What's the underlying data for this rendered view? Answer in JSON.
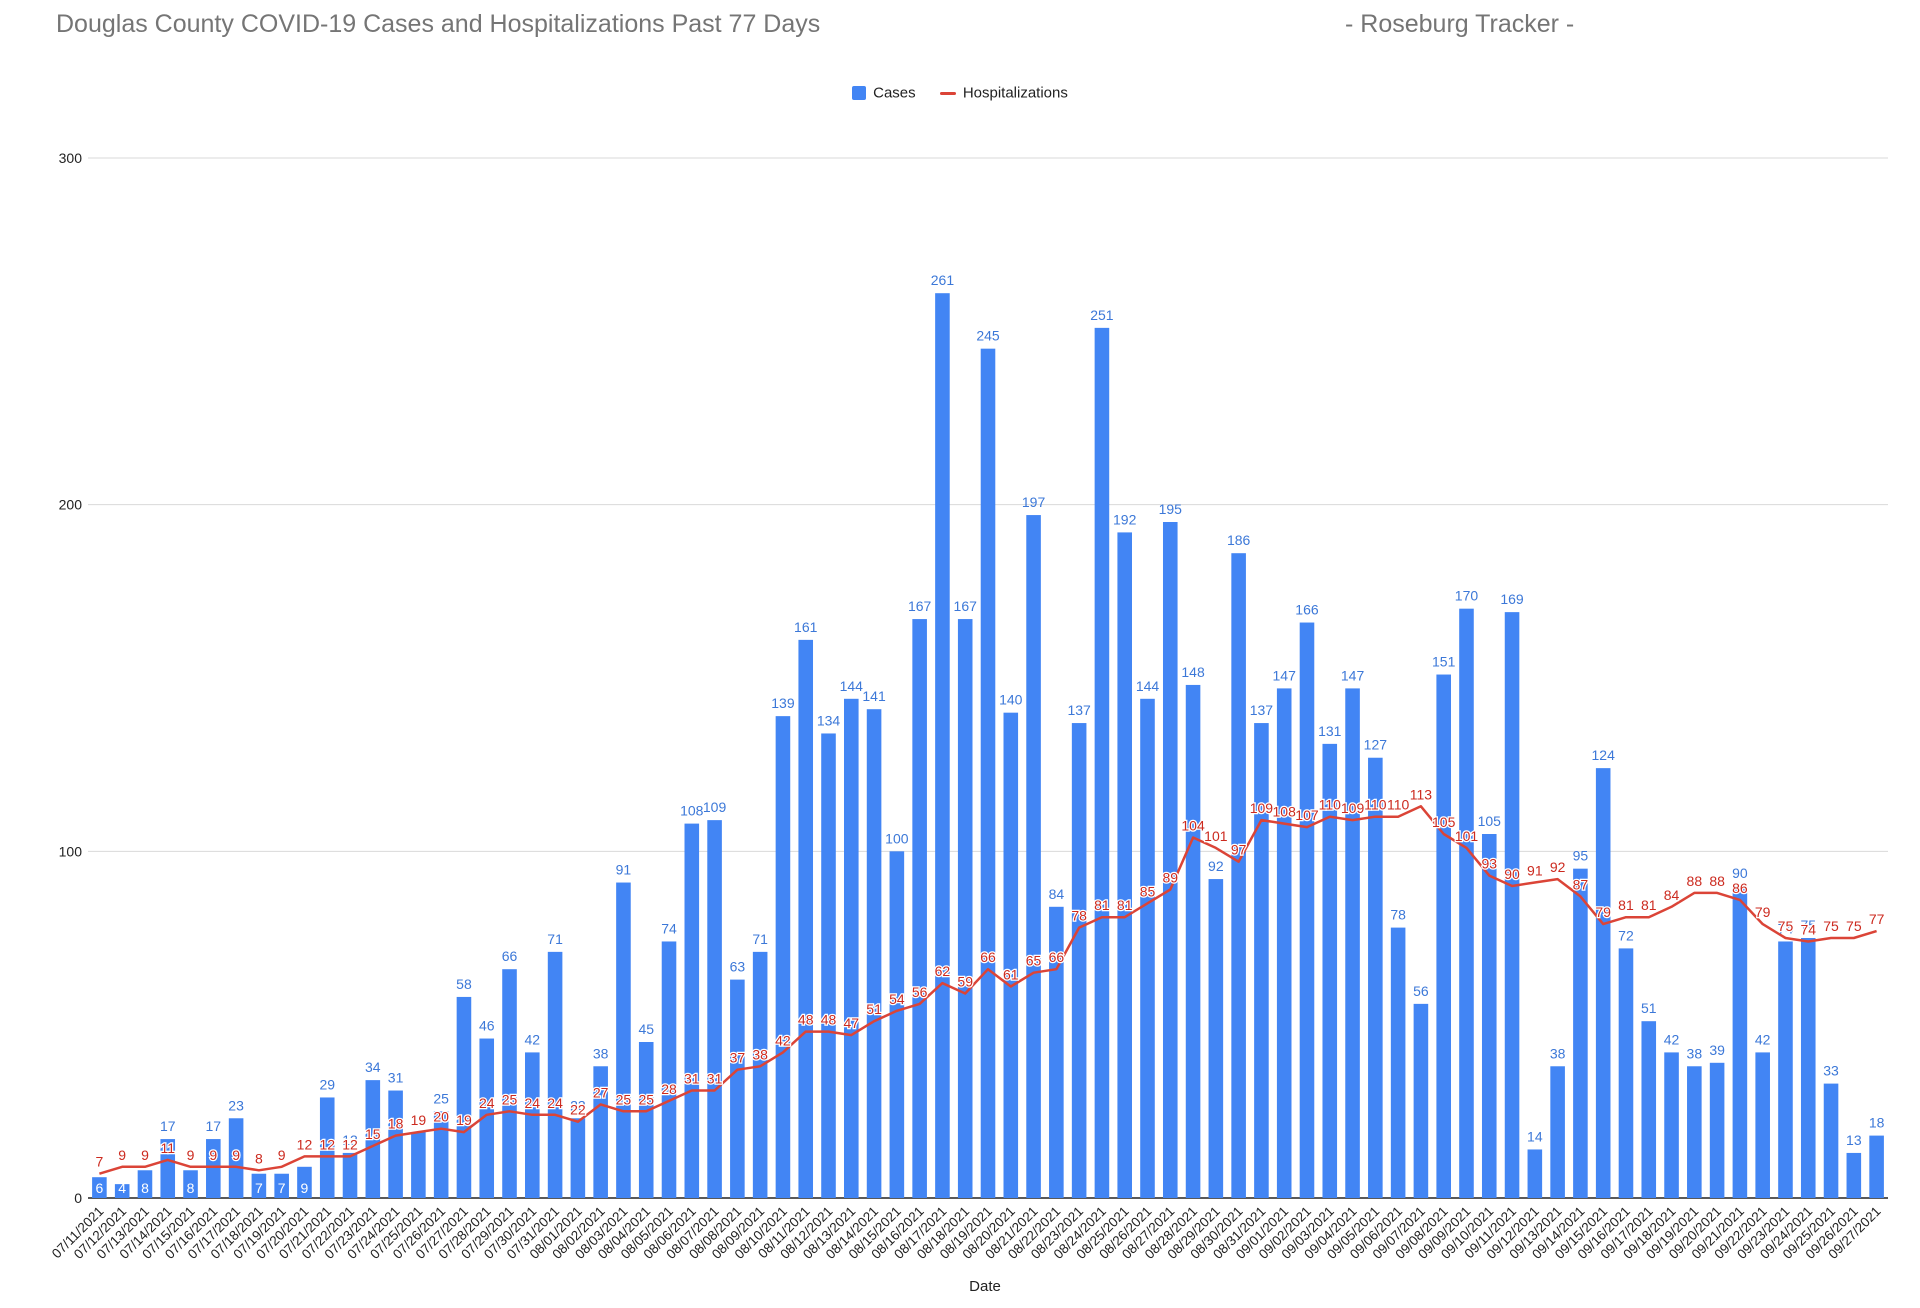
{
  "colors": {
    "cases": "#4285f4",
    "hospitalizations": "#db4437",
    "grid": "#d9d9d9",
    "axis": "#222222",
    "title": "#757575",
    "cases_label": "#3c78d8",
    "hosp_label": "#cc2a1f"
  },
  "chart_data": {
    "type": "bar",
    "title": "Douglas County COVID-19 Cases and Hospitalizations Past 77 Days",
    "subtitle": "- Roseburg Tracker -",
    "xlabel": "Date",
    "ylabel": "",
    "ylim": [
      0,
      300
    ],
    "yticks": [
      0,
      100,
      200,
      300
    ],
    "grid": true,
    "legend_position": "top-center",
    "categories": [
      "07/11/2021",
      "07/12/2021",
      "07/13/2021",
      "07/14/2021",
      "07/15/2021",
      "07/16/2021",
      "07/17/2021",
      "07/18/2021",
      "07/19/2021",
      "07/20/2021",
      "07/21/2021",
      "07/22/2021",
      "07/23/2021",
      "07/24/2021",
      "07/25/2021",
      "07/26/2021",
      "07/27/2021",
      "07/28/2021",
      "07/29/2021",
      "07/30/2021",
      "07/31/2021",
      "08/01/2021",
      "08/02/2021",
      "08/03/2021",
      "08/04/2021",
      "08/05/2021",
      "08/06/2021",
      "08/07/2021",
      "08/08/2021",
      "08/09/2021",
      "08/10/2021",
      "08/11/2021",
      "08/12/2021",
      "08/13/2021",
      "08/14/2021",
      "08/15/2021",
      "08/16/2021",
      "08/17/2021",
      "08/18/2021",
      "08/19/2021",
      "08/20/2021",
      "08/21/2021",
      "08/22/2021",
      "08/23/2021",
      "08/24/2021",
      "08/25/2021",
      "08/26/2021",
      "08/27/2021",
      "08/28/2021",
      "08/29/2021",
      "08/30/2021",
      "08/31/2021",
      "09/01/2021",
      "09/02/2021",
      "09/03/2021",
      "09/04/2021",
      "09/05/2021",
      "09/06/2021",
      "09/07/2021",
      "09/08/2021",
      "09/09/2021",
      "09/10/2021",
      "09/11/2021",
      "09/12/2021",
      "09/13/2021",
      "09/14/2021",
      "09/15/2021",
      "09/16/2021",
      "09/17/2021",
      "09/18/2021",
      "09/19/2021",
      "09/20/2021",
      "09/21/2021",
      "09/22/2021",
      "09/23/2021",
      "09/24/2021",
      "09/25/2021",
      "09/26/2021",
      "09/27/2021"
    ],
    "series": [
      {
        "name": "Cases",
        "type": "bar",
        "values": [
          6,
          4,
          8,
          17,
          8,
          17,
          23,
          7,
          7,
          9,
          29,
          13,
          34,
          31,
          19,
          25,
          58,
          46,
          66,
          42,
          71,
          23,
          38,
          91,
          45,
          74,
          108,
          109,
          63,
          71,
          139,
          161,
          134,
          144,
          141,
          100,
          167,
          261,
          167,
          245,
          140,
          197,
          84,
          137,
          251,
          192,
          144,
          195,
          148,
          92,
          186,
          137,
          147,
          166,
          131,
          147,
          127,
          78,
          56,
          151,
          170,
          105,
          169,
          14,
          38,
          95,
          124,
          72,
          51,
          42,
          38,
          39,
          90,
          42,
          74,
          75,
          33,
          13,
          18
        ]
      },
      {
        "name": "Hospitalizations",
        "type": "line",
        "values": [
          7,
          9,
          9,
          11,
          9,
          9,
          9,
          8,
          9,
          12,
          12,
          12,
          15,
          18,
          19,
          20,
          19,
          24,
          25,
          24,
          24,
          22,
          27,
          25,
          25,
          28,
          31,
          31,
          37,
          38,
          42,
          48,
          48,
          47,
          51,
          54,
          56,
          62,
          59,
          66,
          61,
          65,
          66,
          78,
          81,
          81,
          85,
          89,
          104,
          101,
          97,
          109,
          108,
          107,
          110,
          109,
          110,
          110,
          113,
          105,
          101,
          93,
          90,
          91,
          92,
          87,
          79,
          81,
          81,
          84,
          88,
          88,
          86,
          79,
          75,
          74,
          75,
          75,
          77
        ]
      }
    ]
  }
}
